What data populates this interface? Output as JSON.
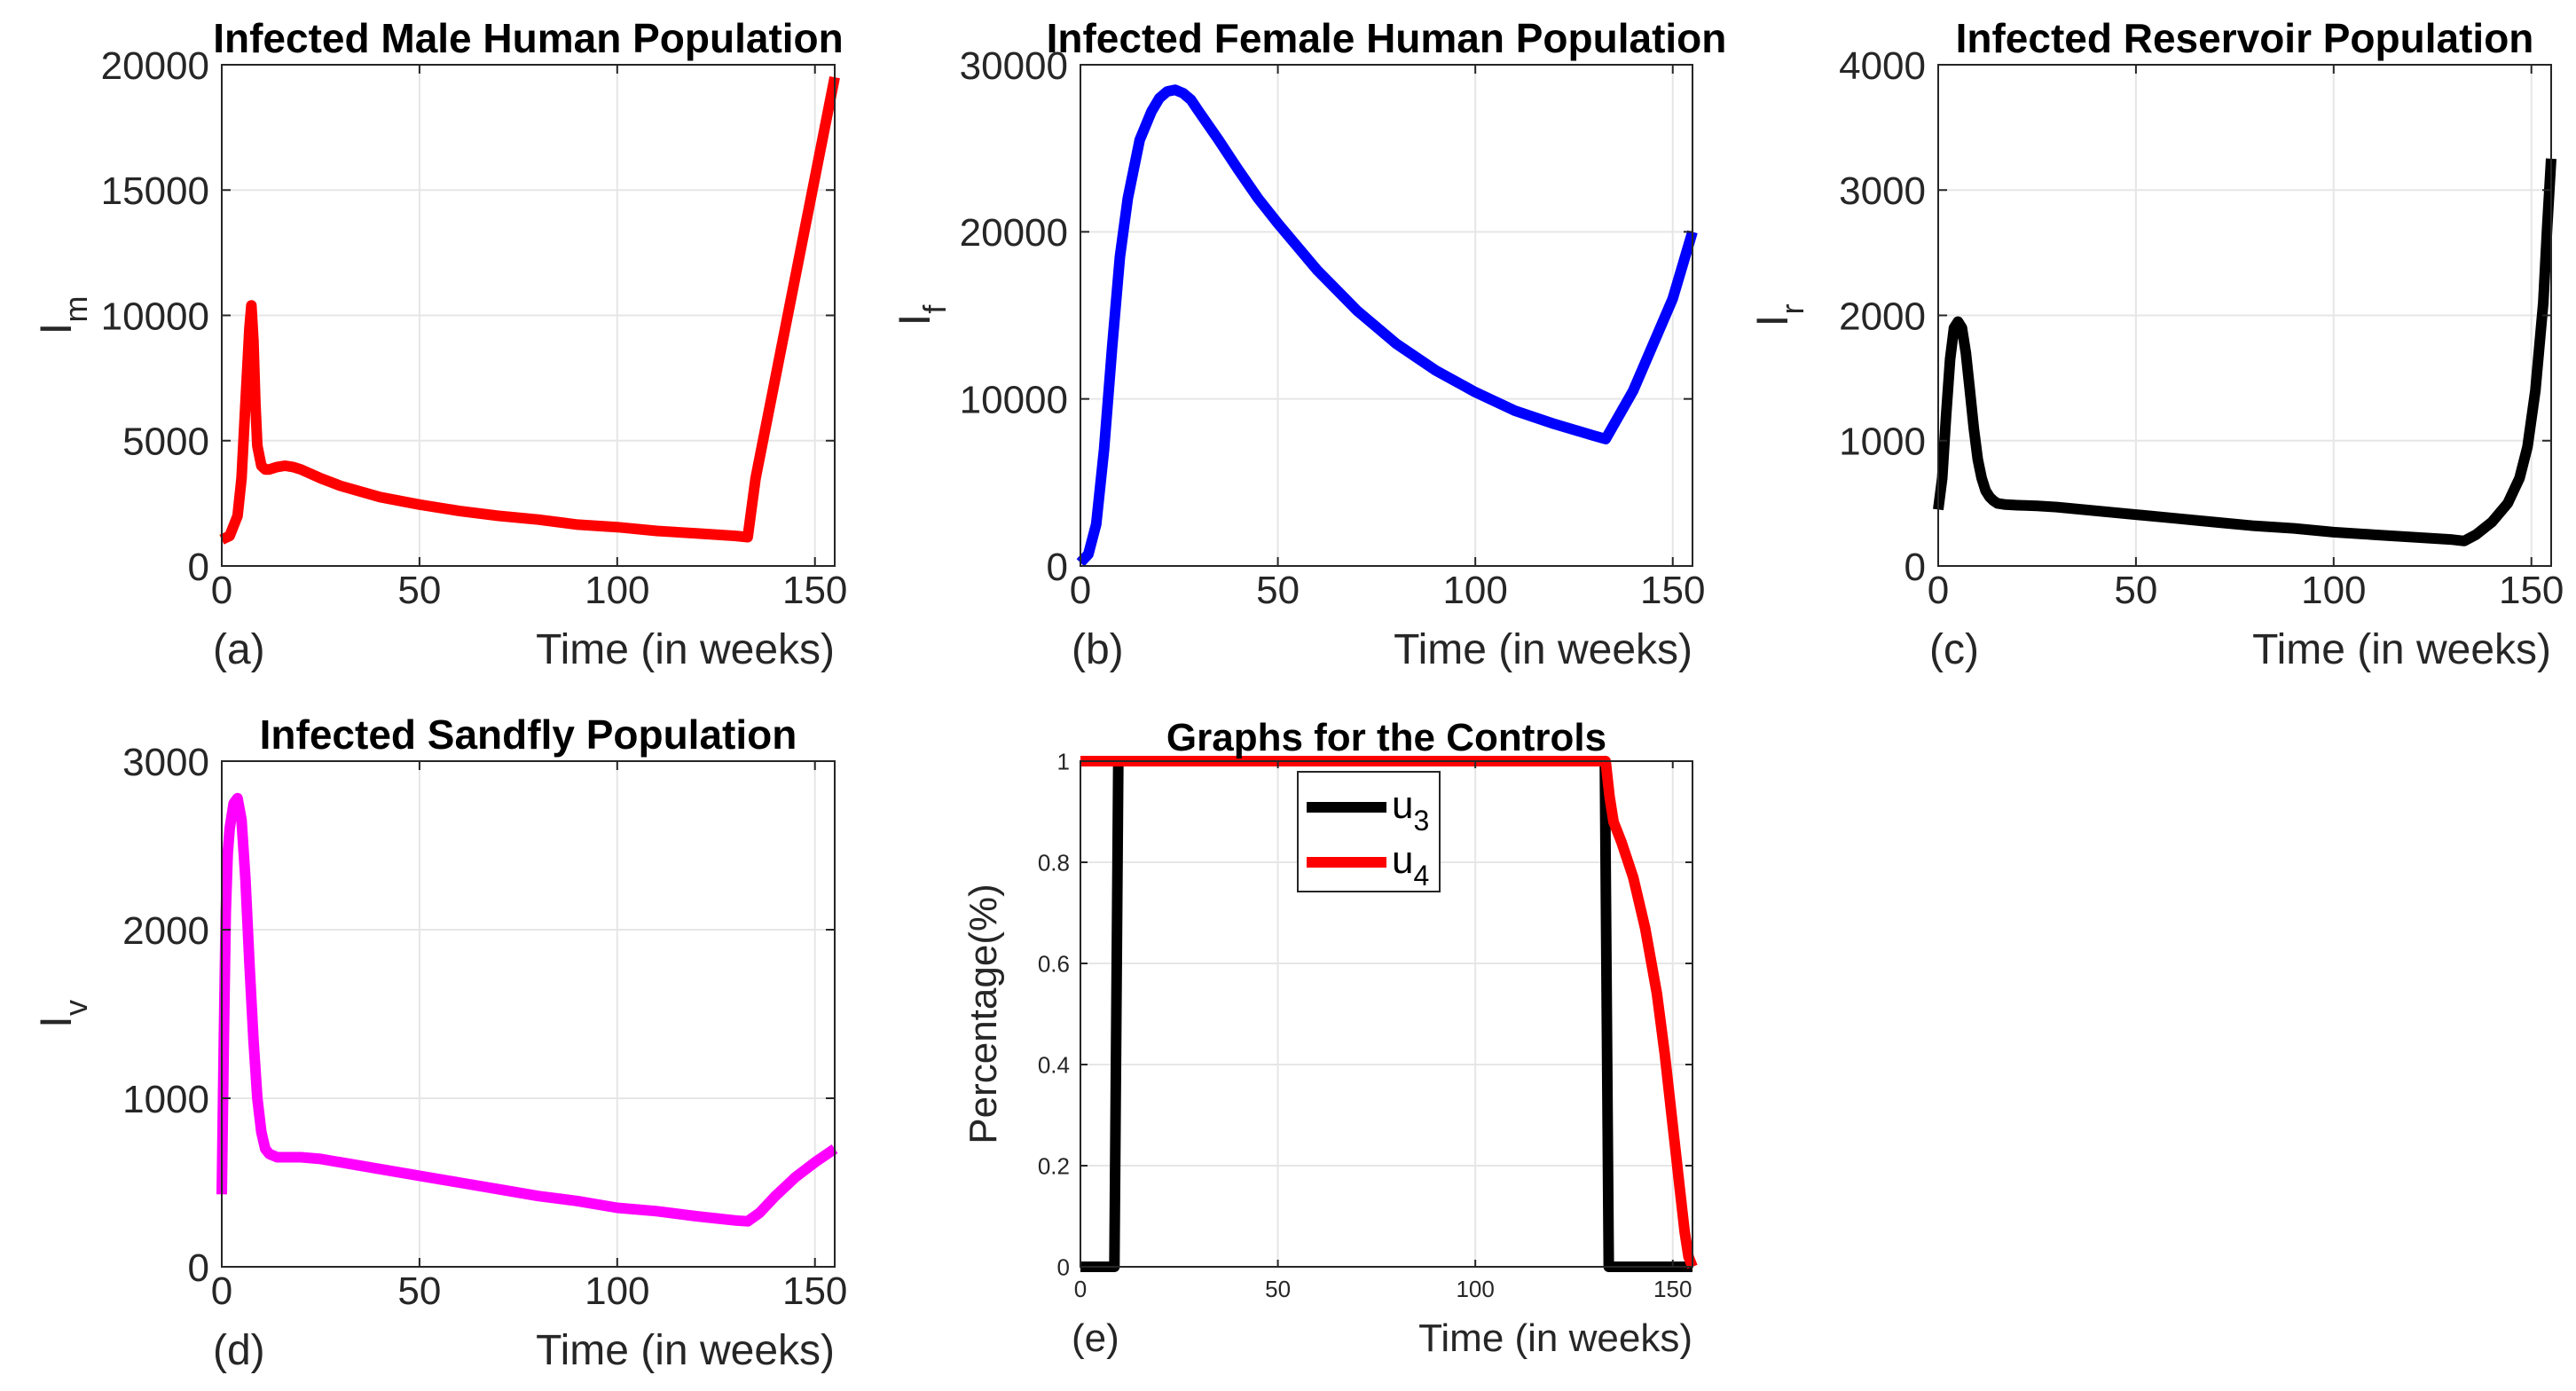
{
  "chart_data": [
    {
      "id": "a",
      "type": "line",
      "title": "Infected Male Human Population",
      "xlabel": "Time (in weeks)",
      "ylabel": "I",
      "ylabel_sub": "m",
      "panel_label": "(a)",
      "xlim": [
        0,
        155
      ],
      "ylim": [
        0,
        20000
      ],
      "xticks": [
        0,
        50,
        100,
        150
      ],
      "yticks": [
        0,
        5000,
        10000,
        15000,
        20000
      ],
      "grid": true,
      "series": [
        {
          "color": "#ff0000",
          "x": [
            0,
            2,
            4,
            5,
            6,
            7,
            7.5,
            8,
            8.5,
            9,
            10,
            11,
            12,
            14,
            16,
            18,
            20,
            25,
            30,
            40,
            50,
            60,
            70,
            80,
            90,
            100,
            110,
            120,
            130,
            133,
            135,
            140,
            145,
            150,
            155
          ],
          "y": [
            1050,
            1200,
            2000,
            3500,
            6500,
            9500,
            10400,
            9000,
            6500,
            4800,
            4000,
            3850,
            3850,
            3950,
            4000,
            3950,
            3850,
            3500,
            3200,
            2750,
            2450,
            2200,
            2000,
            1850,
            1650,
            1550,
            1400,
            1300,
            1200,
            1150,
            3500,
            7500,
            11500,
            15500,
            19500
          ]
        }
      ]
    },
    {
      "id": "b",
      "type": "line",
      "title": "Infected Female Human Population",
      "xlabel": "Time (in weeks)",
      "ylabel": "I",
      "ylabel_sub": "f",
      "panel_label": "(b)",
      "xlim": [
        0,
        155
      ],
      "ylim": [
        0,
        30000
      ],
      "xticks": [
        0,
        50,
        100,
        150
      ],
      "yticks": [
        0,
        10000,
        20000,
        30000
      ],
      "grid": true,
      "series": [
        {
          "color": "#0000ff",
          "x": [
            0,
            2,
            4,
            6,
            8,
            10,
            12,
            15,
            18,
            20,
            22,
            24,
            26,
            28,
            30,
            35,
            40,
            45,
            50,
            60,
            70,
            80,
            90,
            100,
            110,
            120,
            130,
            133,
            140,
            150,
            155
          ],
          "y": [
            200,
            700,
            2500,
            7000,
            13000,
            18500,
            22000,
            25500,
            27200,
            28000,
            28400,
            28500,
            28300,
            27900,
            27200,
            25500,
            23700,
            22000,
            20500,
            17700,
            15300,
            13300,
            11700,
            10400,
            9300,
            8500,
            7800,
            7600,
            10500,
            16000,
            20000
          ]
        }
      ]
    },
    {
      "id": "c",
      "type": "line",
      "title": "Infected Reservoir Population",
      "xlabel": "Time (in weeks)",
      "ylabel": "I",
      "ylabel_sub": "r",
      "panel_label": "(c)",
      "xlim": [
        0,
        155
      ],
      "ylim": [
        0,
        4000
      ],
      "xticks": [
        0,
        50,
        100,
        150
      ],
      "yticks": [
        0,
        1000,
        2000,
        3000,
        4000
      ],
      "grid": true,
      "series": [
        {
          "color": "#000000",
          "x": [
            0,
            1,
            2,
            3,
            4,
            5,
            6,
            7,
            8,
            9,
            10,
            11,
            12,
            13,
            14,
            15,
            17,
            20,
            25,
            30,
            40,
            50,
            60,
            70,
            80,
            90,
            100,
            110,
            120,
            130,
            133,
            136,
            140,
            144,
            147,
            149,
            151,
            153,
            154,
            155
          ],
          "y": [
            450,
            700,
            1200,
            1650,
            1900,
            1950,
            1900,
            1700,
            1400,
            1100,
            850,
            700,
            600,
            550,
            520,
            500,
            490,
            485,
            480,
            470,
            440,
            410,
            380,
            350,
            320,
            300,
            270,
            250,
            230,
            210,
            200,
            250,
            350,
            500,
            700,
            950,
            1400,
            2100,
            2700,
            3250
          ]
        }
      ]
    },
    {
      "id": "d",
      "type": "line",
      "title": "Infected Sandfly Population",
      "xlabel": "Time (in weeks)",
      "ylabel": "I",
      "ylabel_sub": "v",
      "panel_label": "(d)",
      "xlim": [
        0,
        155
      ],
      "ylim": [
        0,
        3000
      ],
      "xticks": [
        0,
        50,
        100,
        150
      ],
      "yticks": [
        0,
        1000,
        2000,
        3000
      ],
      "grid": true,
      "series": [
        {
          "color": "#ff00ff",
          "x": [
            0,
            0.5,
            1,
            1.5,
            2,
            3,
            4,
            5,
            6,
            7,
            8,
            9,
            10,
            11,
            12,
            14,
            16,
            20,
            25,
            30,
            40,
            50,
            60,
            70,
            80,
            90,
            100,
            110,
            120,
            130,
            133,
            136,
            140,
            145,
            150,
            155
          ],
          "y": [
            430,
            1300,
            2100,
            2450,
            2600,
            2750,
            2780,
            2650,
            2300,
            1800,
            1350,
            1000,
            800,
            700,
            670,
            650,
            650,
            650,
            640,
            620,
            580,
            540,
            500,
            460,
            420,
            390,
            350,
            330,
            300,
            275,
            270,
            320,
            420,
            530,
            620,
            700
          ]
        }
      ]
    },
    {
      "id": "e",
      "type": "line",
      "title": "Graphs for the Controls",
      "xlabel": "Time (in weeks)",
      "ylabel": "Percentage(%)",
      "panel_label": "(e)",
      "xlim": [
        0,
        155
      ],
      "ylim": [
        0,
        1
      ],
      "xticks": [
        0,
        50,
        100,
        150
      ],
      "yticks": [
        0,
        0.2,
        0.4,
        0.6,
        0.8,
        1
      ],
      "grid": true,
      "legend": "top-center",
      "series": [
        {
          "name": "u",
          "name_sub": "3",
          "color": "#000000",
          "x": [
            0,
            8.6,
            9.6,
            132.8,
            133.8,
            155
          ],
          "y": [
            0,
            0,
            1,
            1,
            0,
            0
          ]
        },
        {
          "name": "u",
          "name_sub": "4",
          "color": "#ff0000",
          "x": [
            0,
            133,
            134,
            135,
            137,
            140,
            143,
            146,
            148,
            150,
            152,
            153,
            154,
            155
          ],
          "y": [
            1,
            1,
            0.93,
            0.88,
            0.84,
            0.77,
            0.67,
            0.54,
            0.42,
            0.28,
            0.14,
            0.07,
            0.02,
            0
          ]
        }
      ]
    }
  ]
}
